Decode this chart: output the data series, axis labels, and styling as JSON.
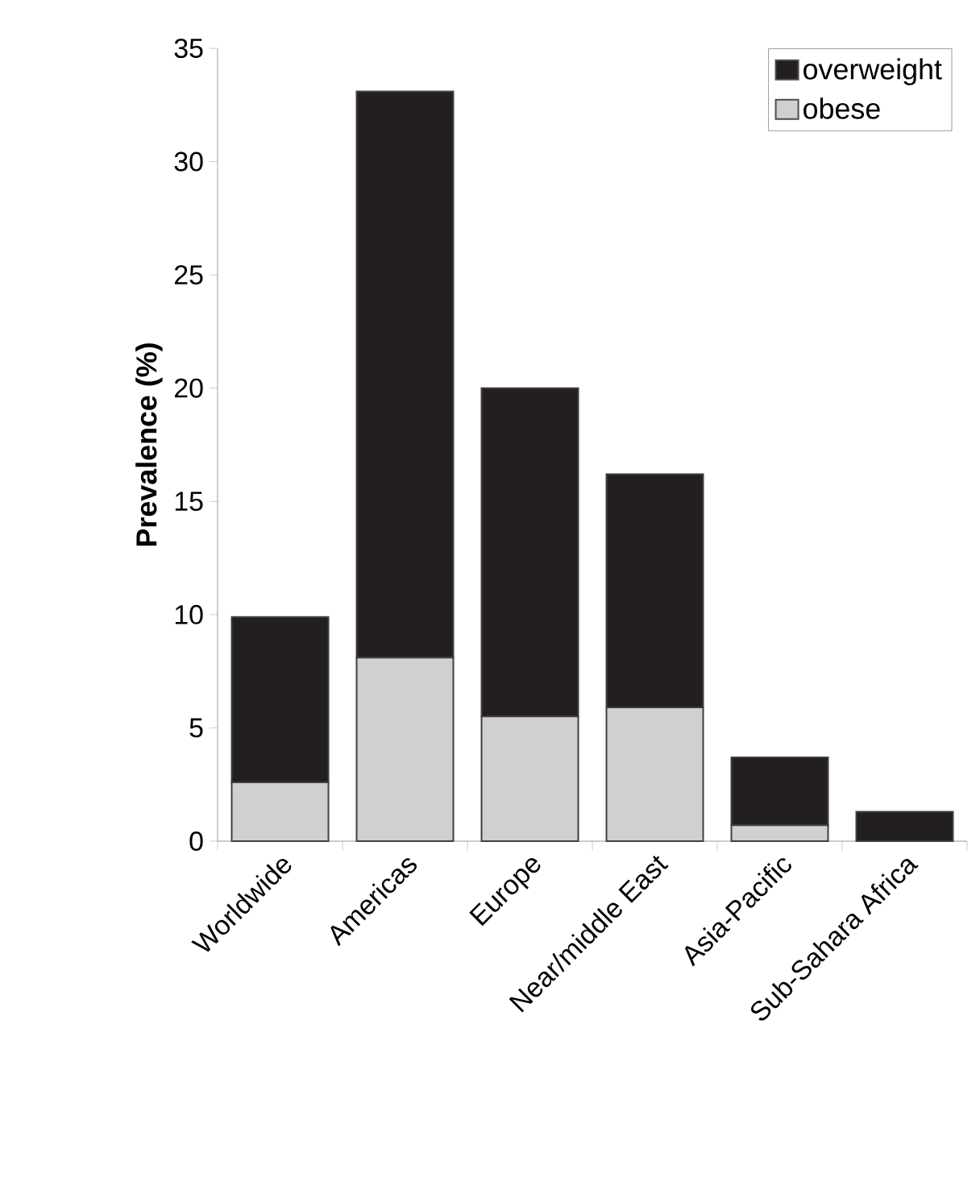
{
  "chart_data": {
    "type": "bar",
    "stacked": true,
    "ylabel": "Prevalence (%)",
    "categories": [
      "Worldwide",
      "Americas",
      "Europe",
      "Near/middle East",
      "Asia-Pacific",
      "Sub-Sahara Africa"
    ],
    "series": [
      {
        "name": "obese",
        "color": "#d0d0d0",
        "values": [
          2.6,
          8.1,
          5.5,
          5.9,
          0.7,
          0
        ]
      },
      {
        "name": "overweight",
        "color": "#231f20",
        "values": [
          7.3,
          25.0,
          14.5,
          10.3,
          3.0,
          1.3
        ]
      }
    ],
    "ylim": [
      0,
      35
    ],
    "yticks": [
      0,
      5,
      10,
      15,
      20,
      25,
      30,
      35
    ],
    "legend": "top right",
    "grid": false
  }
}
